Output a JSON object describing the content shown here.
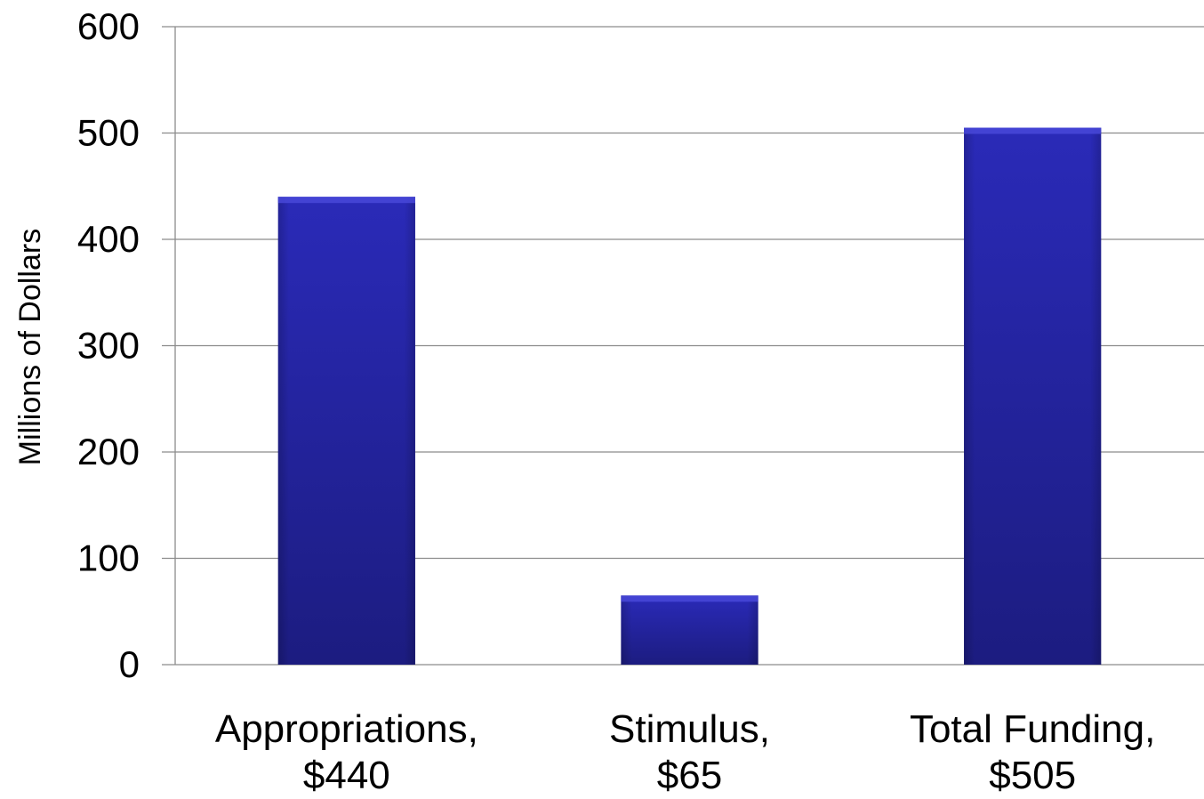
{
  "chart_data": {
    "type": "bar",
    "title": "",
    "xlabel": "",
    "ylabel": "Millions of Dollars",
    "ylim": [
      0,
      600
    ],
    "yticks": [
      0,
      100,
      200,
      300,
      400,
      500,
      600
    ],
    "grid": true,
    "legend": "none",
    "categories": [
      [
        "Appropriations,",
        "$440"
      ],
      [
        "Stimulus,",
        "$65"
      ],
      [
        "Total Funding,",
        "$505"
      ]
    ],
    "values": [
      440,
      65,
      505
    ],
    "bar_color": "#2626a6",
    "gridline_color": "#8c8c8c"
  }
}
